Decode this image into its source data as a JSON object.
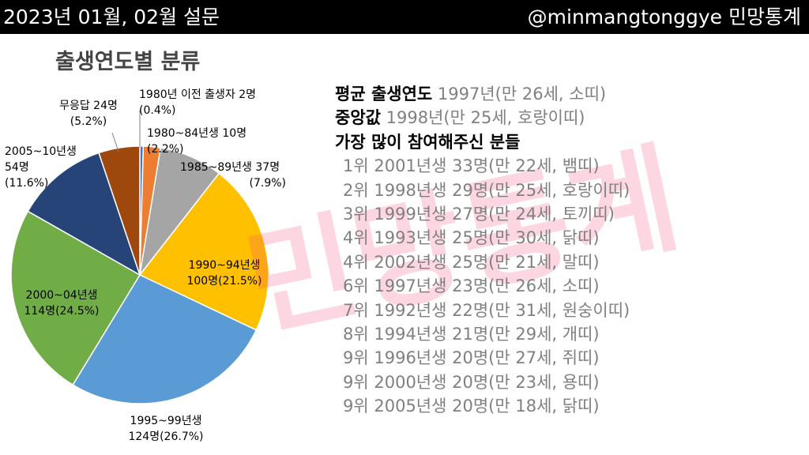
{
  "header": {
    "left": "2023년 01월, 02월 설문",
    "right": "@minmangtonggye 민망통계"
  },
  "watermark": "민망통계",
  "chart_data": {
    "type": "pie",
    "title": "출생연도별 분류",
    "slices": [
      {
        "name": "1980년 이전 출생자",
        "count_label": "2명",
        "value": 2,
        "percent": 0.4,
        "pct_label": "(0.4%)",
        "color": "#4472c4"
      },
      {
        "name": "1980~84년생",
        "count_label": "10명",
        "value": 10,
        "percent": 2.2,
        "pct_label": "(2.2%)",
        "color": "#ed7d31"
      },
      {
        "name": "1985~89년생",
        "count_label": "37명",
        "value": 37,
        "percent": 7.9,
        "pct_label": "(7.9%)",
        "color": "#a5a5a5"
      },
      {
        "name": "1990~94년생",
        "count_label": "100명",
        "value": 100,
        "percent": 21.5,
        "pct_label": "(21.5%)",
        "color": "#ffc000"
      },
      {
        "name": "1995~99년생",
        "count_label": "124명",
        "value": 124,
        "percent": 26.7,
        "pct_label": "(26.7%)",
        "color": "#5b9bd5"
      },
      {
        "name": "2000~04년생",
        "count_label": "114명",
        "value": 114,
        "percent": 24.5,
        "pct_label": "(24.5%)",
        "color": "#70ad47"
      },
      {
        "name": "2005~10년생",
        "count_label": "54명",
        "value": 54,
        "percent": 11.6,
        "pct_label": "(11.6%)",
        "color": "#264478"
      },
      {
        "name": "무응답",
        "count_label": "24명",
        "value": 24,
        "percent": 5.2,
        "pct_label": "(5.2%)",
        "color": "#9e480e"
      }
    ]
  },
  "stats": {
    "mean": {
      "label": "평균 출생연도",
      "value": "1997년(만 26세, 소띠)"
    },
    "median": {
      "label": "중앙값",
      "value": "1998년(만 25세, 호랑이띠)"
    },
    "top_label": "가장 많이 참여해주신 분들",
    "ranking": [
      "1위 2001년생 33명(만 22세, 뱀띠)",
      "2위 1998년생 29명(만 25세, 호랑이띠)",
      "3위 1999년생 27명(만 24세, 토끼띠)",
      "4위 1993년생 25명(만 30세, 닭띠)",
      "4위 2002년생 25명(만 21세, 말띠)",
      "6위 1997년생 23명(만 26세, 소띠)",
      "7위 1992년생 22명(만 31세, 원숭이띠)",
      "8위 1994년생 21명(만 29세, 개띠)",
      "9위 1996년생 20명(만 27세, 쥐띠)",
      "9위 2000년생 20명(만 23세, 용띠)",
      "9위 2005년생 20명(만 18세, 닭띠)"
    ]
  }
}
